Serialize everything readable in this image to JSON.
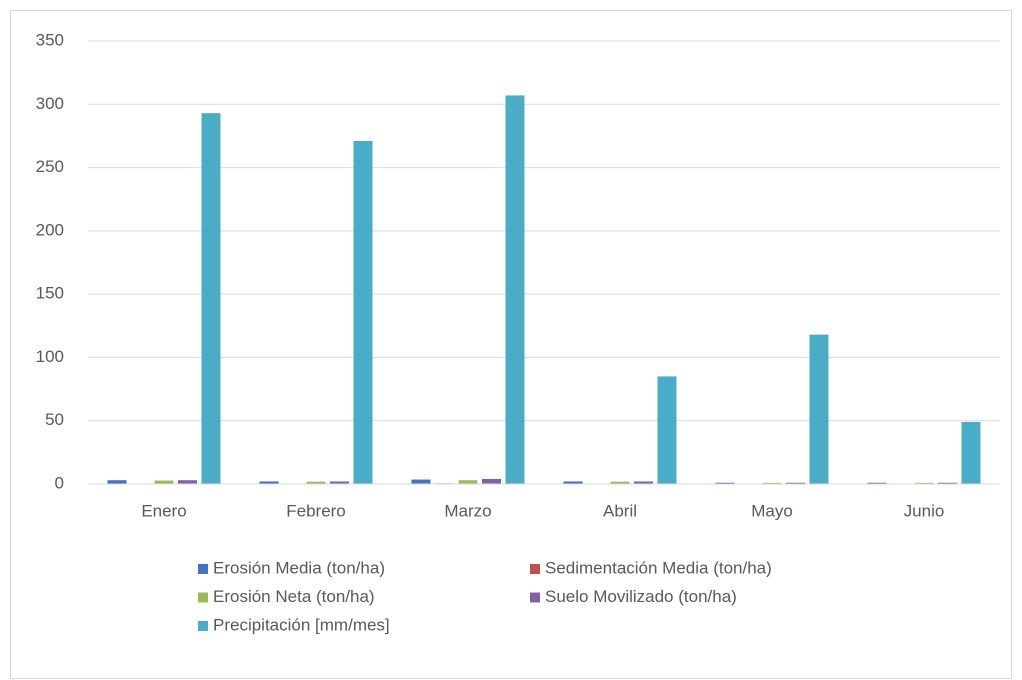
{
  "chart_data": {
    "type": "bar",
    "categories": [
      "Enero",
      "Febrero",
      "Marzo",
      "Abril",
      "Mayo",
      "Junio"
    ],
    "series": [
      {
        "name": "Erosión Media (ton/ha)",
        "color": "#4472c4",
        "values": [
          3,
          2,
          3.5,
          2,
          1,
          1
        ]
      },
      {
        "name": "Sedimentación Media (ton/ha)",
        "color": "#c0504d",
        "values": [
          0.3,
          0.2,
          0.5,
          0.2,
          0.1,
          0.1
        ]
      },
      {
        "name": "Erosión Neta (ton/ha)",
        "color": "#9bbb59",
        "values": [
          2.7,
          1.8,
          3,
          1.8,
          0.9,
          0.9
        ]
      },
      {
        "name": "Suelo Movilizado (ton/ha)",
        "color": "#8064a2",
        "values": [
          3,
          2,
          4,
          2,
          1,
          1
        ]
      },
      {
        "name": "Precipitación [mm/mes]",
        "color": "#4bacc6",
        "values": [
          293,
          271,
          307,
          85,
          118,
          49
        ]
      }
    ],
    "ylim": [
      0,
      350
    ],
    "yticks": [
      0,
      50,
      100,
      150,
      200,
      250,
      300,
      350
    ],
    "grid": true,
    "legend": "bottom"
  }
}
